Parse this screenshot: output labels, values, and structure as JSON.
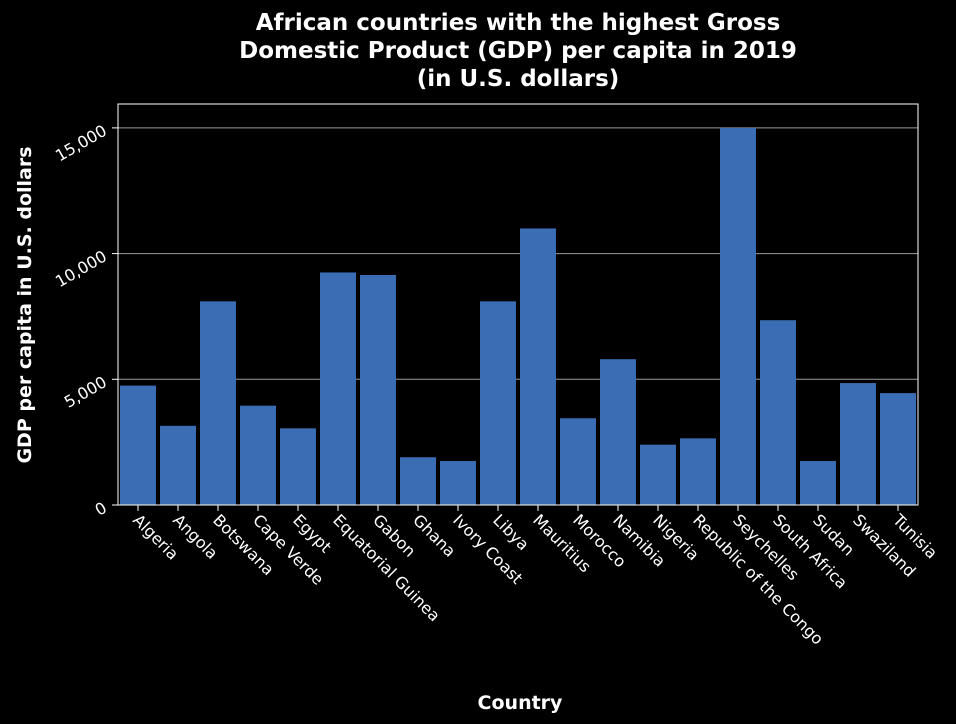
{
  "chart_data": {
    "type": "bar",
    "title_lines": [
      "African countries with the highest Gross",
      "Domestic Product (GDP) per capita in 2019",
      "(in U.S. dollars)"
    ],
    "xlabel": "Country",
    "ylabel": "GDP per capita in U.S. dollars",
    "categories": [
      "Algeria",
      "Angola",
      "Botswana",
      "Cape Verde",
      "Egypt",
      "Equatorial Guinea",
      "Gabon",
      "Ghana",
      "Ivory Coast",
      "Libya",
      "Mauritius",
      "Morocco",
      "Namibia",
      "Nigeria",
      "Republic of the Congo",
      "Seychelles",
      "South Africa",
      "Sudan",
      "Swaziland",
      "Tunisia"
    ],
    "values": [
      4750,
      3150,
      8100,
      3950,
      3050,
      9250,
      9150,
      1900,
      1750,
      8100,
      11000,
      3450,
      5800,
      2400,
      2650,
      15000,
      7350,
      1750,
      4850,
      4450
    ],
    "ylim": [
      0,
      15950
    ],
    "yticks": [
      0,
      5000,
      10000,
      15000
    ],
    "ytick_labels": [
      "0",
      "5,000",
      "10,000",
      "15,000"
    ],
    "grid": true,
    "legend": "none",
    "colors": {
      "bar": "#3a6db3",
      "background": "#000000",
      "text": "#ffffff",
      "grid": "#9a9a9a"
    }
  }
}
